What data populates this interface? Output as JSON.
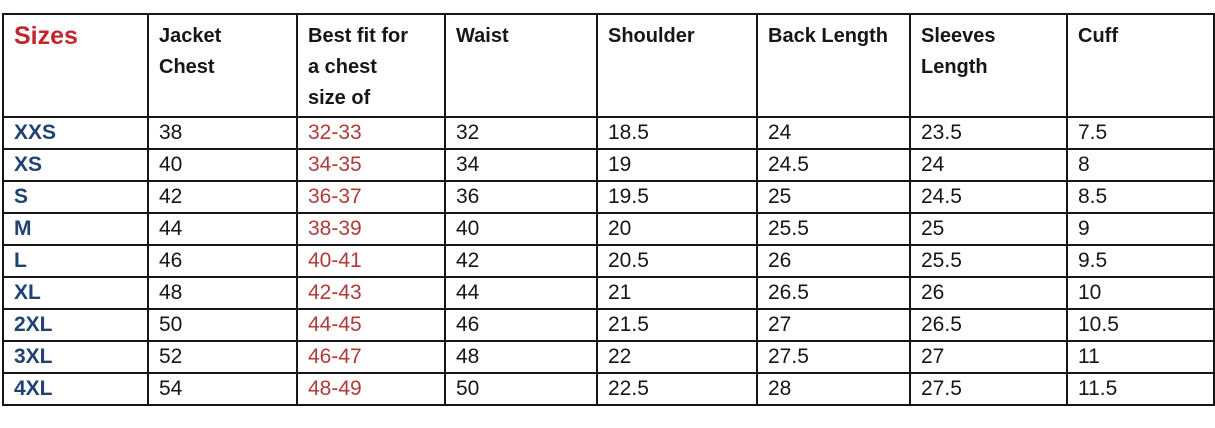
{
  "chart_data": {
    "type": "table",
    "title": "Sizes",
    "columns": [
      {
        "key": "size",
        "label": "Sizes",
        "lines": [
          "Sizes"
        ]
      },
      {
        "key": "jacket_chest",
        "label": "Jacket Chest",
        "lines": [
          "Jacket",
          "Chest"
        ]
      },
      {
        "key": "best_fit",
        "label": "Best fit for a chest size of",
        "lines": [
          "Best fit for",
          "a chest",
          "size of"
        ]
      },
      {
        "key": "waist",
        "label": "Waist",
        "lines": [
          "Waist"
        ]
      },
      {
        "key": "shoulder",
        "label": "Shoulder",
        "lines": [
          "Shoulder"
        ]
      },
      {
        "key": "back_length",
        "label": "Back Length",
        "lines": [
          "Back Length"
        ]
      },
      {
        "key": "sleeves_length",
        "label": "Sleeves Length",
        "lines": [
          "Sleeves",
          "Length"
        ]
      },
      {
        "key": "cuff",
        "label": "Cuff",
        "lines": [
          "Cuff"
        ]
      }
    ],
    "rows": [
      {
        "size": "XXS",
        "jacket_chest": "38",
        "best_fit": "32-33",
        "waist": "32",
        "shoulder": "18.5",
        "back_length": "24",
        "sleeves_length": "23.5",
        "cuff": "7.5"
      },
      {
        "size": "XS",
        "jacket_chest": "40",
        "best_fit": "34-35",
        "waist": "34",
        "shoulder": "19",
        "back_length": "24.5",
        "sleeves_length": "24",
        "cuff": "8"
      },
      {
        "size": "S",
        "jacket_chest": "42",
        "best_fit": "36-37",
        "waist": "36",
        "shoulder": "19.5",
        "back_length": "25",
        "sleeves_length": "24.5",
        "cuff": "8.5"
      },
      {
        "size": "M",
        "jacket_chest": "44",
        "best_fit": "38-39",
        "waist": "40",
        "shoulder": "20",
        "back_length": "25.5",
        "sleeves_length": "25",
        "cuff": "9"
      },
      {
        "size": "L",
        "jacket_chest": "46",
        "best_fit": "40-41",
        "waist": "42",
        "shoulder": "20.5",
        "back_length": "26",
        "sleeves_length": "25.5",
        "cuff": "9.5"
      },
      {
        "size": "XL",
        "jacket_chest": "48",
        "best_fit": "42-43",
        "waist": "44",
        "shoulder": "21",
        "back_length": "26.5",
        "sleeves_length": "26",
        "cuff": "10"
      },
      {
        "size": "2XL",
        "jacket_chest": "50",
        "best_fit": "44-45",
        "waist": "46",
        "shoulder": "21.5",
        "back_length": "27",
        "sleeves_length": "26.5",
        "cuff": "10.5"
      },
      {
        "size": "3XL",
        "jacket_chest": "52",
        "best_fit": "46-47",
        "waist": "48",
        "shoulder": "22",
        "back_length": "27.5",
        "sleeves_length": "27",
        "cuff": "11"
      },
      {
        "size": "4XL",
        "jacket_chest": "54",
        "best_fit": "48-49",
        "waist": "50",
        "shoulder": "22.5",
        "back_length": "28",
        "sleeves_length": "27.5",
        "cuff": "11.5"
      }
    ],
    "colors": {
      "title_red": "#c2262b",
      "range_red": "#b03a38",
      "size_navy": "#1f4373",
      "text": "#161616",
      "border": "#161616"
    },
    "layout_hints": {
      "grid": "on",
      "header_position": "top"
    }
  }
}
